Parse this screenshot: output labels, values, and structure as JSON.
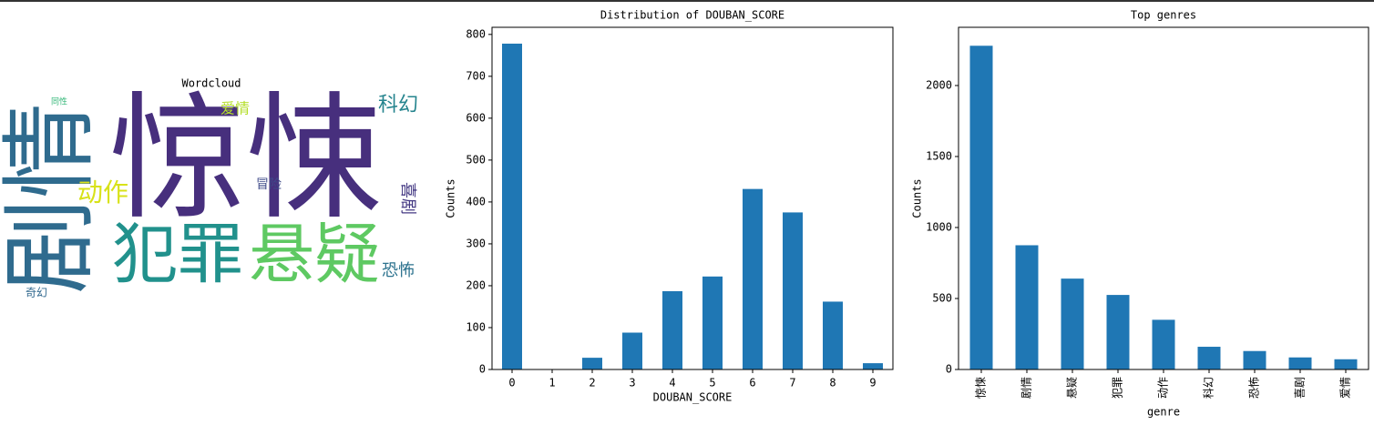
{
  "chart_data": [
    {
      "type": "wordcloud",
      "title": "Wordcloud",
      "words": [
        "惊悚",
        "剧情",
        "犯罪",
        "悬疑",
        "动作",
        "科幻",
        "爱情",
        "冒险",
        "喜剧",
        "恐怖",
        "奇幻",
        "同性"
      ]
    },
    {
      "type": "bar",
      "title": "Distribution of DOUBAN_SCORE",
      "xlabel": "DOUBAN_SCORE",
      "ylabel": "Counts",
      "categories": [
        "0",
        "1",
        "2",
        "3",
        "4",
        "5",
        "6",
        "7",
        "8",
        "9"
      ],
      "values": [
        778,
        1,
        28,
        88,
        187,
        222,
        431,
        375,
        162,
        15
      ],
      "color": "#1f77b4",
      "ylim": [
        0,
        817
      ],
      "yticks": [
        0,
        100,
        200,
        300,
        400,
        500,
        600,
        700,
        800
      ],
      "rotate_xticks": false
    },
    {
      "type": "bar",
      "title": "Top genres",
      "xlabel": "genre",
      "ylabel": "Counts",
      "categories": [
        "惊悚",
        "剧情",
        "悬疑",
        "犯罪",
        "动作",
        "科幻",
        "恐怖",
        "喜剧",
        "爱情"
      ],
      "values": [
        2280,
        875,
        640,
        525,
        350,
        160,
        130,
        85,
        72
      ],
      "color": "#1f77b4",
      "ylim": [
        0,
        2410
      ],
      "yticks": [
        0,
        500,
        1000,
        1500,
        2000
      ],
      "rotate_xticks": true
    }
  ]
}
